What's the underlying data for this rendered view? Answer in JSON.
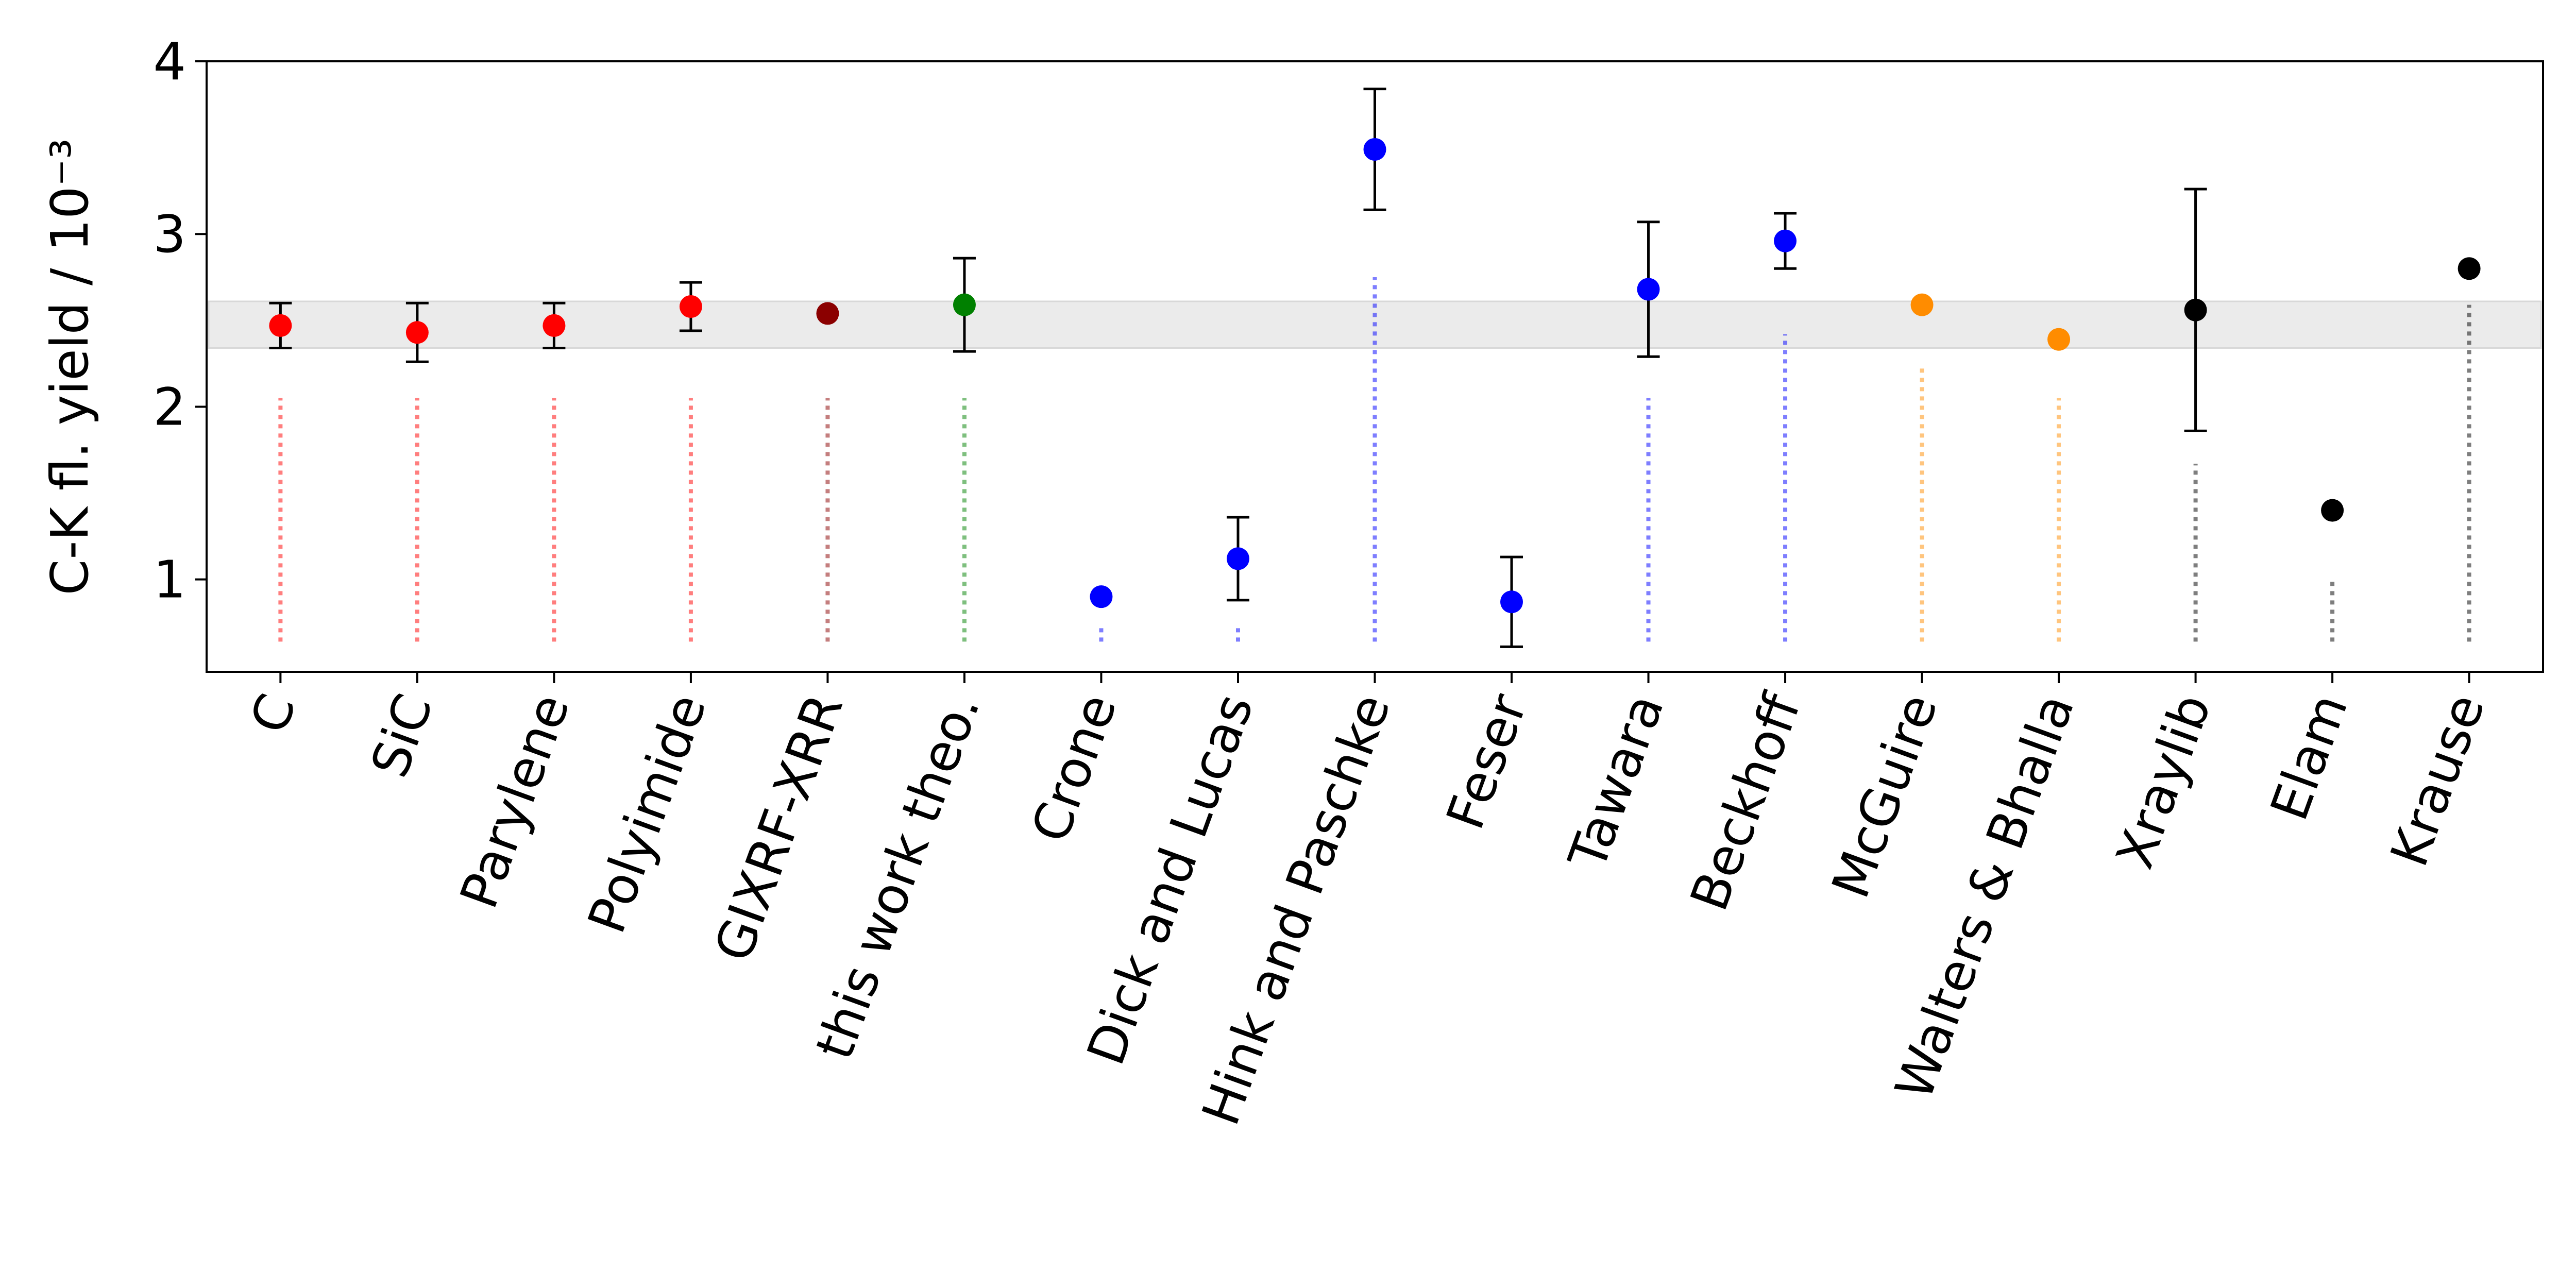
{
  "chart_data": {
    "type": "errorbar-scatter",
    "ylabel": "C-K fl. yield / 10⁻³",
    "categories": [
      "C",
      "SiC",
      "Parylene",
      "Polyimide",
      "GIXRF-XRR",
      "this work theo.",
      "Crone",
      "Dick and Lucas",
      "Hink and Paschke",
      "Feser",
      "Tawara",
      "Beckhoff",
      "McGuire",
      "Walters & Bhalla",
      "Xraylib",
      "Elam",
      "Krause"
    ],
    "values": [
      2.47,
      2.43,
      2.47,
      2.58,
      2.54,
      2.59,
      0.9,
      1.12,
      3.49,
      0.87,
      2.68,
      2.96,
      2.59,
      2.39,
      2.56,
      1.4,
      2.8
    ],
    "errors": [
      0.13,
      0.17,
      0.13,
      0.14,
      null,
      0.27,
      null,
      0.24,
      0.35,
      0.26,
      0.39,
      0.16,
      null,
      null,
      0.7,
      null,
      null
    ],
    "colors": [
      "#ff0000",
      "#ff0000",
      "#ff0000",
      "#ff0000",
      "#8b0000",
      "#008000",
      "#0000ff",
      "#0000ff",
      "#0000ff",
      "#0000ff",
      "#0000ff",
      "#0000ff",
      "#ff8c00",
      "#ff8c00",
      "#000000",
      "#000000",
      "#000000"
    ],
    "stem_base": 0.64,
    "stem_tops": [
      2.05,
      2.05,
      2.05,
      2.05,
      2.05,
      2.05,
      0.72,
      0.74,
      2.75,
      null,
      2.05,
      2.42,
      2.25,
      2.05,
      1.67,
      1.0,
      2.59
    ],
    "band": [
      2.34,
      2.61
    ],
    "band_color": "#ebebeb",
    "ylim": [
      0.465,
      4
    ],
    "yticks": [
      1,
      2,
      3,
      4
    ]
  }
}
